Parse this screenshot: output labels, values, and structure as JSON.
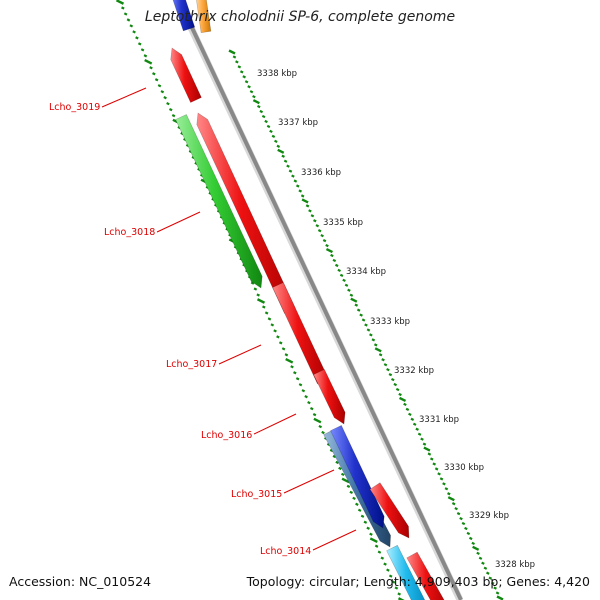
{
  "title": "Leptothrix cholodnii SP-6, complete genome",
  "footer": {
    "accession": "Accession: NC_010524",
    "topology": "Topology: circular; Length: 4,909,403 bp; Genes: 4,420"
  },
  "scale_labels": [
    "3338 kbp",
    "3337 kbp",
    "3336 kbp",
    "3335 kbp",
    "3334 kbp",
    "3333 kbp",
    "3332 kbp",
    "3331 kbp",
    "3330 kbp",
    "3329 kbp",
    "3328 kbp"
  ],
  "gene_labels": [
    "Lcho_3019",
    "Lcho_3018",
    "Lcho_3017",
    "Lcho_3016",
    "Lcho_3015",
    "Lcho_3014"
  ],
  "colors": {
    "red_gene": "#ee1111",
    "green_gene": "#33cc33",
    "blue_gene": "#2233cc",
    "steel_gene": "#4477aa",
    "cyan_gene": "#22bbee",
    "orange_gene": "#ffaa44",
    "backbone": "#888888",
    "scale_dots": "#118811",
    "label_red": "#dd0000"
  }
}
